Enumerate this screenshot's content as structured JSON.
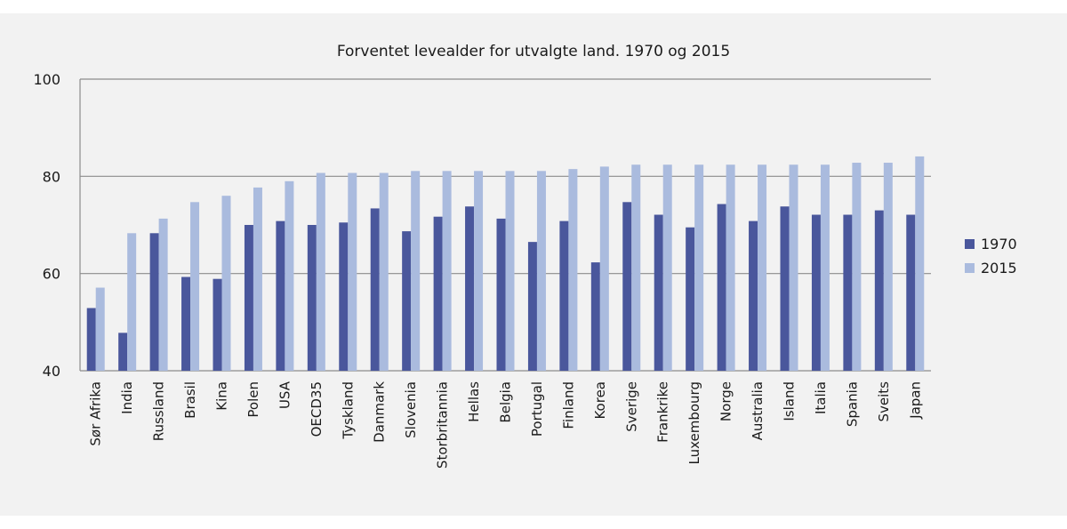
{
  "chart_data": {
    "type": "bar",
    "title": "Forventet levealder for utvalgte land. 1970 og 2015",
    "xlabel": "",
    "ylabel": "",
    "ylim": [
      40,
      100
    ],
    "yticks": [
      40,
      60,
      80,
      100
    ],
    "grid": true,
    "legend_position": "right",
    "categories": [
      "Sør Afrika",
      "India",
      "Russland",
      "Brasil",
      "Kina",
      "Polen",
      "USA",
      "OECD35",
      "Tyskland",
      "Danmark",
      "Slovenia",
      "Storbritannia",
      "Hellas",
      "Belgia",
      "Portugal",
      "Finland",
      "Korea",
      "Sverige",
      "Frankrike",
      "Luxembourg",
      "Norge",
      "Australia",
      "Island",
      "Italia",
      "Spania",
      "Sveits",
      "Japan"
    ],
    "series": [
      {
        "name": "1970",
        "color": "#4a579c",
        "values": [
          52.9,
          47.8,
          68.3,
          59.3,
          58.9,
          70.0,
          70.8,
          70.0,
          70.5,
          73.4,
          68.7,
          71.7,
          73.8,
          71.3,
          66.5,
          70.8,
          62.3,
          74.7,
          72.1,
          69.5,
          74.3,
          70.8,
          73.8,
          72.1,
          72.1,
          73.0,
          72.1
        ]
      },
      {
        "name": "2015",
        "color": "#aabbde",
        "values": [
          57.1,
          68.3,
          71.3,
          74.7,
          76.0,
          77.7,
          79.0,
          80.7,
          80.7,
          80.7,
          81.1,
          81.1,
          81.1,
          81.1,
          81.1,
          81.5,
          82.0,
          82.4,
          82.4,
          82.4,
          82.4,
          82.4,
          82.4,
          82.4,
          82.8,
          82.8,
          84.1
        ]
      }
    ]
  }
}
